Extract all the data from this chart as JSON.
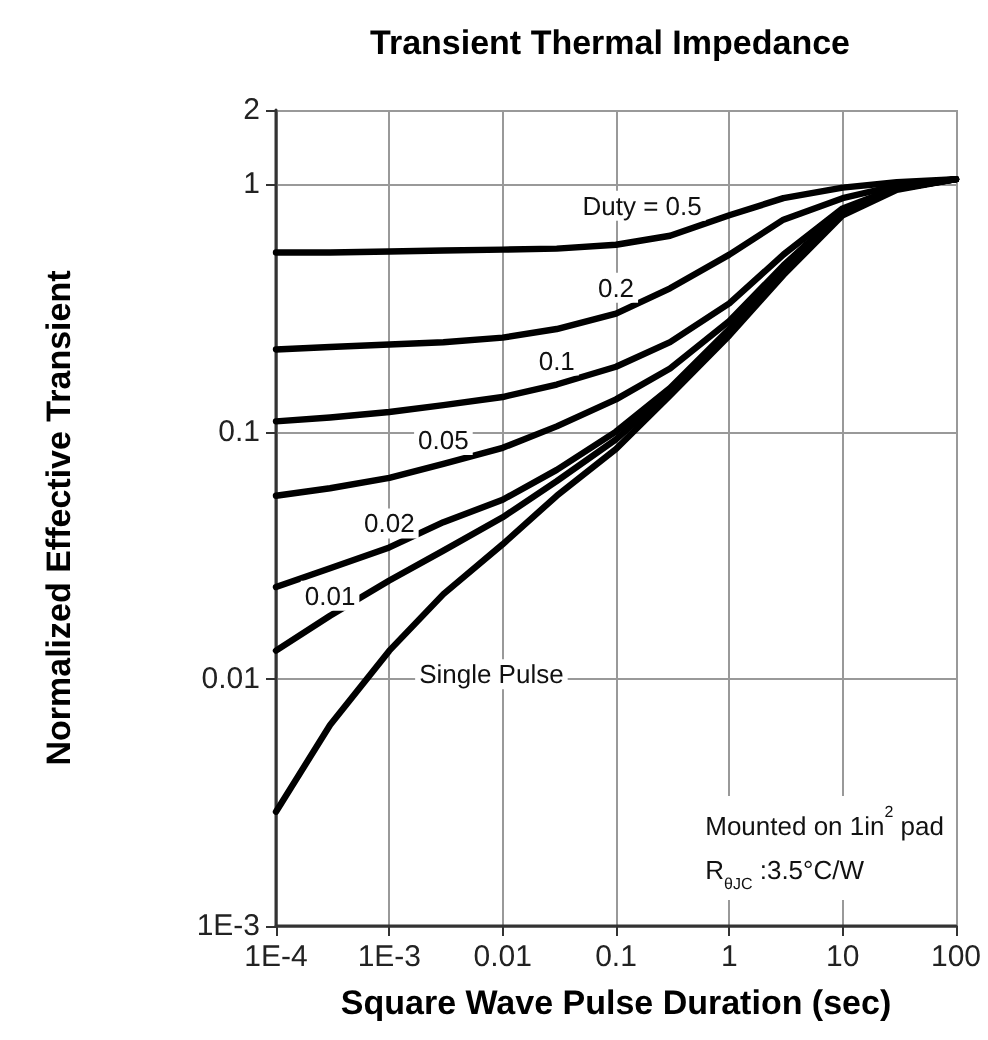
{
  "chart_data": {
    "type": "line",
    "title": "Transient Thermal Impedance",
    "xlabel": "Square Wave Pulse Duration (sec)",
    "ylabel": "Normalized Effective Transient",
    "log": "xy",
    "grid": true,
    "legend": false,
    "marker": "none",
    "line_style": "solid",
    "xlim": [
      0.0001,
      100
    ],
    "xticks": [
      {
        "value": 0.0001,
        "label": "1E-4"
      },
      {
        "value": 0.001,
        "label": "1E-3"
      },
      0.01,
      0.1,
      1,
      10,
      100
    ],
    "ylim": [
      0.001,
      2
    ],
    "yticks": [
      {
        "value": 0.001,
        "label": "1E-3"
      },
      0.01,
      0.1,
      1,
      2
    ],
    "x": [
      0.0001,
      0.0003,
      0.001,
      0.003,
      0.01,
      0.03,
      0.1,
      0.3,
      1,
      3,
      10,
      30,
      100
    ],
    "series": [
      {
        "name": "Duty = 0.5",
        "color": "#000000",
        "values": [
          0.53,
          0.53,
          0.535,
          0.54,
          0.545,
          0.55,
          0.57,
          0.62,
          0.75,
          0.88,
          0.97,
          1.02,
          1.05
        ]
      },
      {
        "name": "0.2",
        "color": "#000000",
        "values": [
          0.215,
          0.22,
          0.225,
          0.23,
          0.24,
          0.26,
          0.3,
          0.38,
          0.52,
          0.72,
          0.88,
          0.99,
          1.05
        ]
      },
      {
        "name": "0.1",
        "color": "#000000",
        "values": [
          0.11,
          0.114,
          0.12,
          0.128,
          0.138,
          0.155,
          0.183,
          0.23,
          0.33,
          0.52,
          0.8,
          0.97,
          1.05
        ]
      },
      {
        "name": "0.05",
        "color": "#000000",
        "values": [
          0.055,
          0.059,
          0.065,
          0.074,
          0.086,
          0.105,
          0.135,
          0.18,
          0.28,
          0.47,
          0.78,
          0.96,
          1.05
        ]
      },
      {
        "name": "0.02",
        "color": "#000000",
        "values": [
          0.0235,
          0.028,
          0.034,
          0.043,
          0.053,
          0.07,
          0.1,
          0.15,
          0.26,
          0.45,
          0.77,
          0.96,
          1.05
        ]
      },
      {
        "name": "0.01",
        "color": "#000000",
        "values": [
          0.013,
          0.018,
          0.025,
          0.033,
          0.045,
          0.063,
          0.093,
          0.145,
          0.25,
          0.44,
          0.76,
          0.96,
          1.05
        ]
      },
      {
        "name": "Single Pulse",
        "color": "#000000",
        "values": [
          0.0029,
          0.0065,
          0.013,
          0.022,
          0.035,
          0.055,
          0.085,
          0.14,
          0.245,
          0.43,
          0.75,
          0.95,
          1.05
        ]
      }
    ],
    "annotations": [
      "Mounted on 1in$^{2}$ pad",
      "R$_{θJC}$ :3.5°C/W"
    ]
  }
}
